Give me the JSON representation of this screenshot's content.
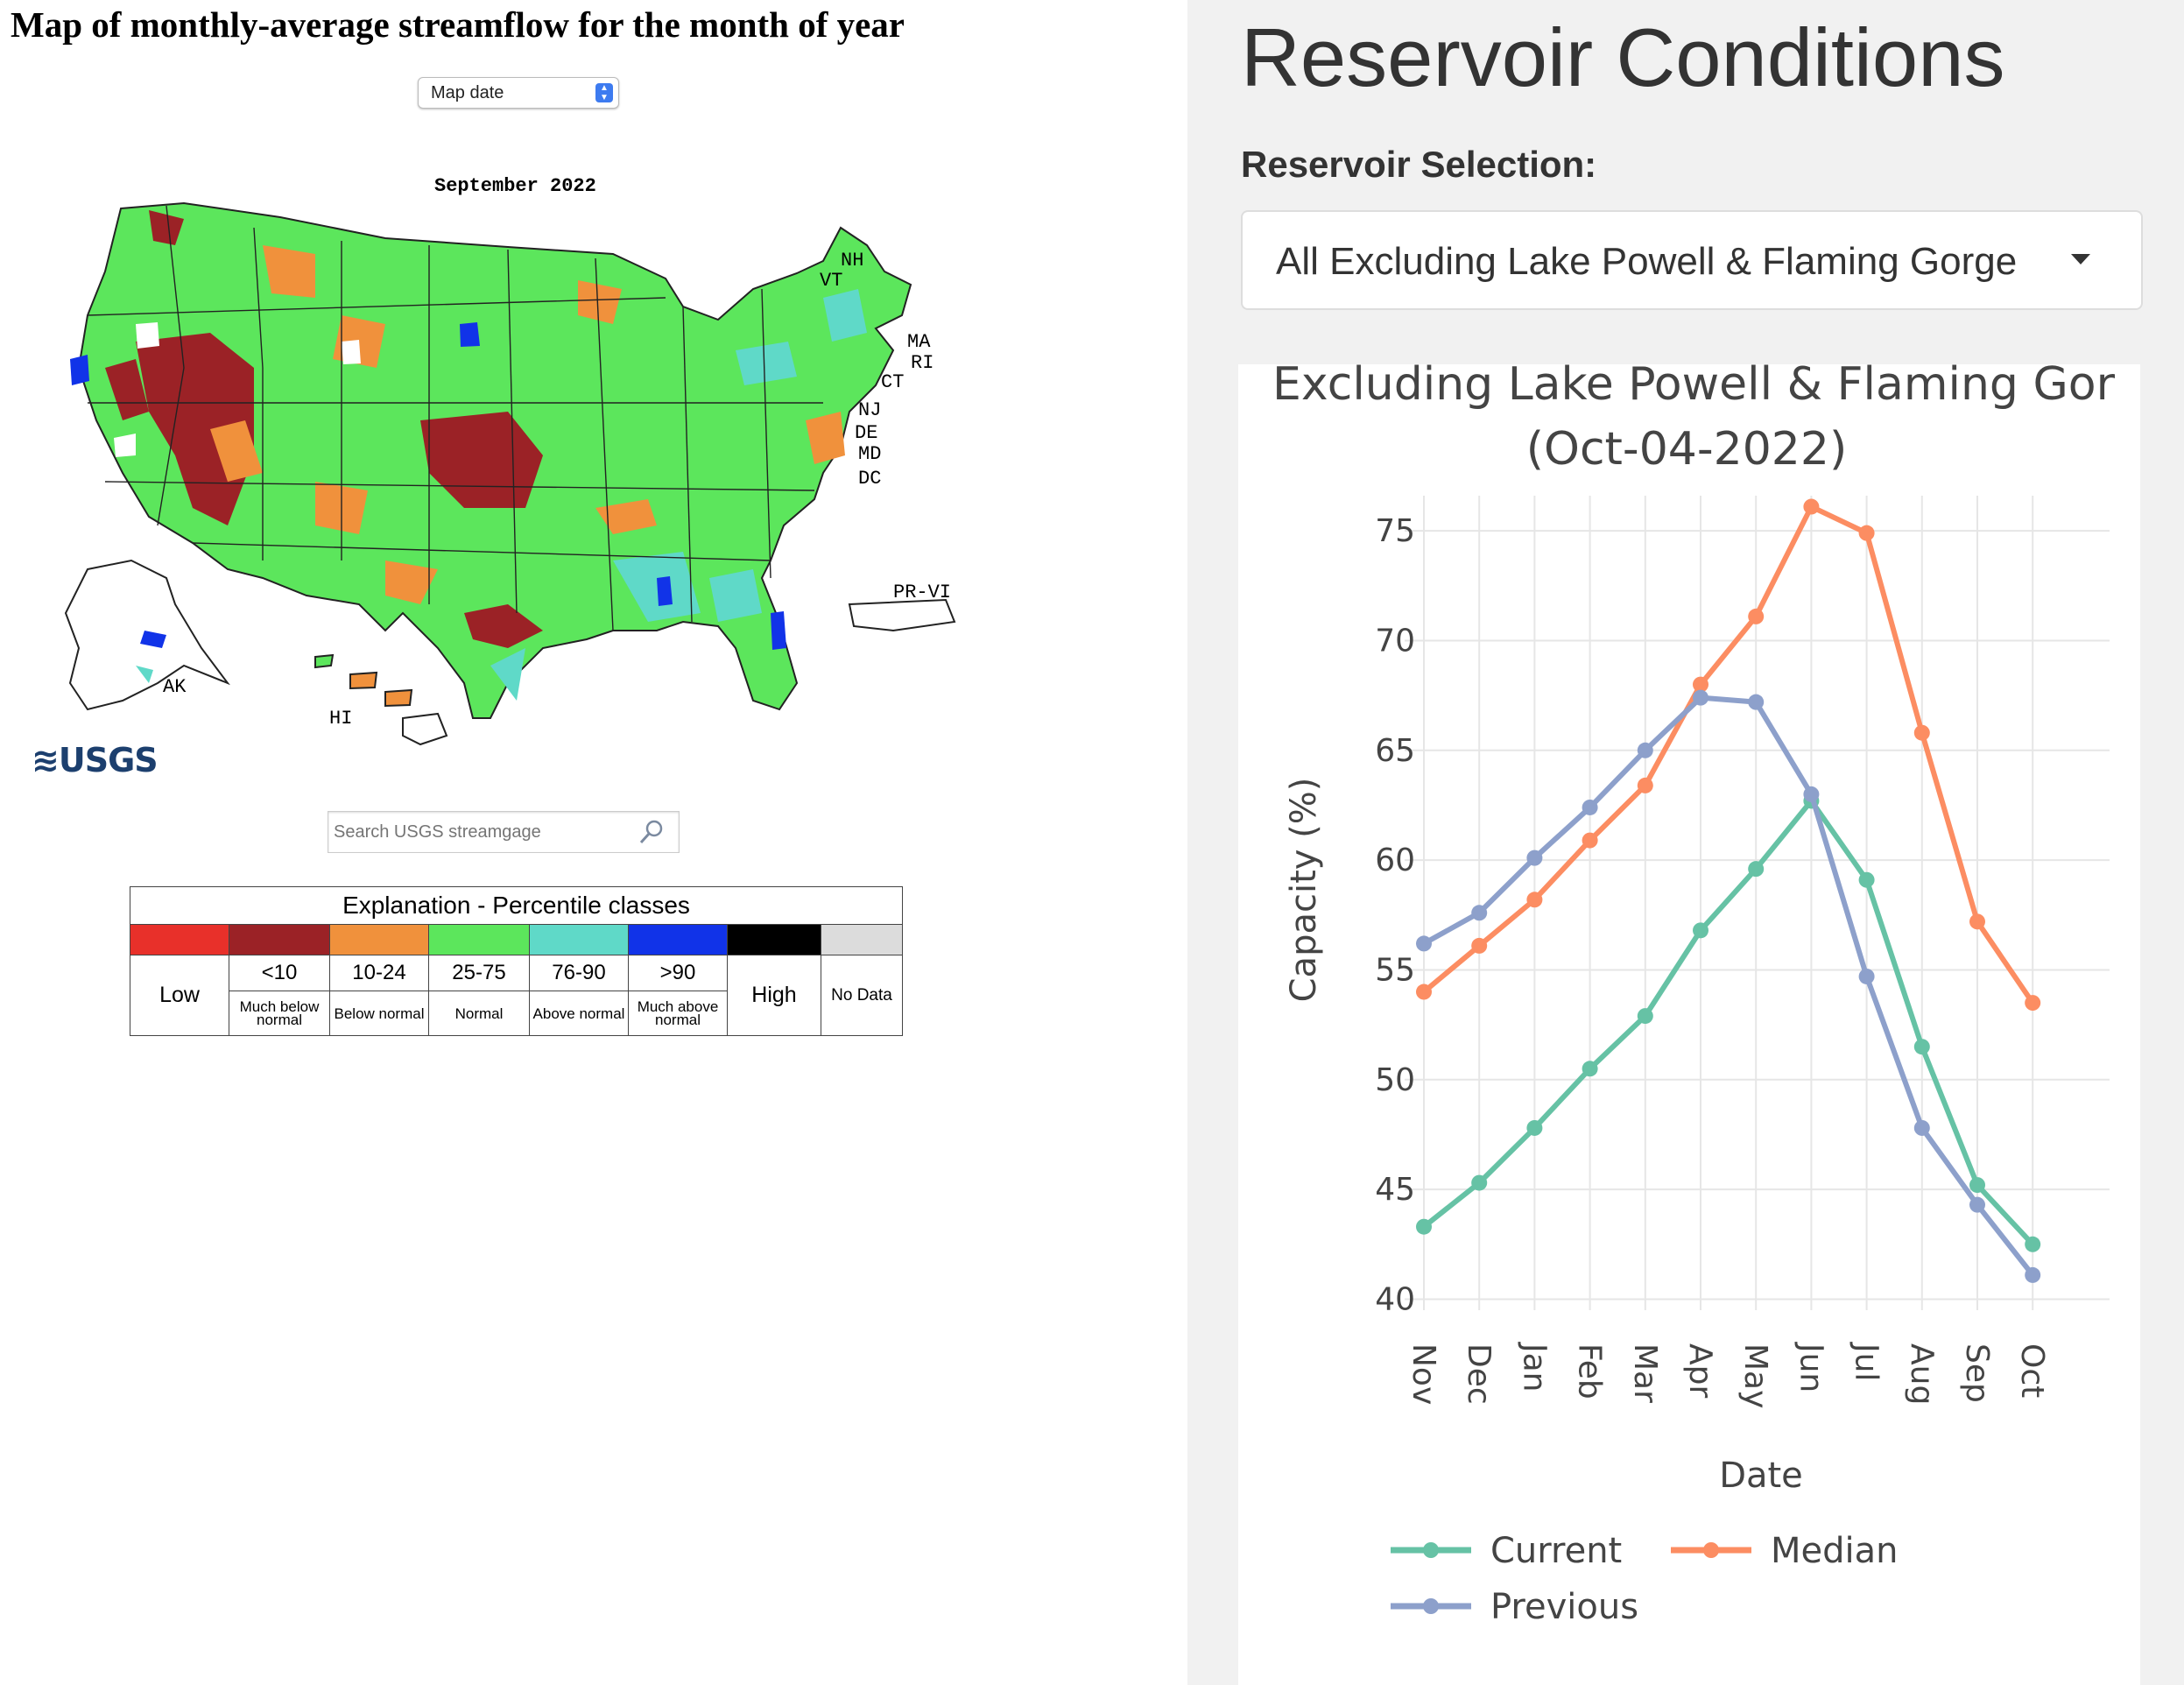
{
  "left_panel": {
    "title": "Map of monthly-average streamflow for the month of year",
    "date_select": "Map date",
    "map_month": "September 2022",
    "state_labels": [
      "NH",
      "VT",
      "MA",
      "RI",
      "CT",
      "NJ",
      "DE",
      "MD",
      "DC",
      "PR-VI",
      "AK",
      "HI"
    ],
    "logo_text": "USGS",
    "search_placeholder": "Search USGS streamgage",
    "legend": {
      "title": "Explanation - Percentile classes",
      "classes": [
        {
          "color": "#e8302a",
          "label": "Low",
          "sub": ""
        },
        {
          "color": "#9b2226",
          "label": "<10",
          "sub": "Much below normal"
        },
        {
          "color": "#f0913c",
          "label": "10-24",
          "sub": "Below normal"
        },
        {
          "color": "#5ce65c",
          "label": "25-75",
          "sub": "Normal"
        },
        {
          "color": "#5fd9c8",
          "label": "76-90",
          "sub": "Above normal"
        },
        {
          "color": "#1133e8",
          "label": ">90",
          "sub": "Much above normal"
        },
        {
          "color": "#000000",
          "label": "High",
          "sub": ""
        },
        {
          "color": "#dcdcdc",
          "label": "No Data",
          "sub": ""
        }
      ]
    }
  },
  "right_panel": {
    "title": "Reservoir Conditions",
    "selection_label": "Reservoir Selection:",
    "selection_value": "All Excluding Lake Powell & Flaming Gorge",
    "colors": {
      "current": "#66c2a5",
      "median": "#fc8d62",
      "previous": "#8da0cb"
    }
  },
  "chart_data": {
    "type": "line",
    "title": "Excluding Lake Powell & Flaming Gor",
    "subtitle": "(Oct-04-2022)",
    "xlabel": "Date",
    "ylabel": "Capacity (%)",
    "categories": [
      "Nov",
      "Dec",
      "Jan",
      "Feb",
      "Mar",
      "Apr",
      "May",
      "Jun",
      "Jul",
      "Aug",
      "Sep",
      "Oct"
    ],
    "ylim": [
      39.5,
      77
    ],
    "yticks": [
      40,
      45,
      50,
      55,
      60,
      65,
      70,
      75
    ],
    "grid": true,
    "legend_position": "bottom",
    "series": [
      {
        "name": "Current",
        "values": [
          43.3,
          45.3,
          47.8,
          50.5,
          52.9,
          56.8,
          59.6,
          62.7,
          59.1,
          51.5,
          45.2,
          42.5
        ]
      },
      {
        "name": "Median",
        "values": [
          54.0,
          56.1,
          58.2,
          60.9,
          63.4,
          68.0,
          71.1,
          76.1,
          74.9,
          65.8,
          57.2,
          53.5
        ]
      },
      {
        "name": "Previous",
        "values": [
          56.2,
          57.6,
          60.1,
          62.4,
          65.0,
          67.4,
          67.2,
          63.0,
          54.7,
          47.8,
          44.3,
          41.1
        ]
      }
    ]
  }
}
